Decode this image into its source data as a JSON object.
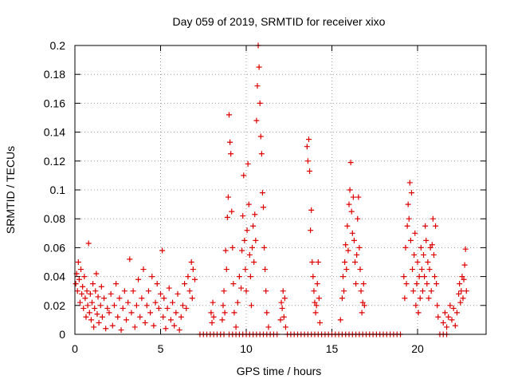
{
  "chart_data": {
    "type": "scatter",
    "title": "Day 059 of 2019, SRMTID for receiver xixo",
    "xlabel": "GPS time / hours",
    "ylabel": "SRMTID / TECUs",
    "xlim": [
      0,
      24
    ],
    "ylim": [
      0,
      0.2
    ],
    "x_ticks": [
      0,
      5,
      10,
      15,
      20
    ],
    "x_tick_labels": [
      "0",
      "5",
      "10",
      "15",
      "20"
    ],
    "y_ticks": [
      0,
      0.02,
      0.04,
      0.06,
      0.08,
      0.1,
      0.12,
      0.14,
      0.16,
      0.18,
      0.2
    ],
    "y_tick_labels": [
      "0",
      "0.02",
      "0.04",
      "0.06",
      "0.08",
      "0.1",
      "0.12",
      "0.14",
      "0.16",
      "0.18",
      "0.2"
    ],
    "grid": true,
    "marker": "+",
    "series_color": "#dd0000",
    "series": [
      {
        "name": "SRMTID",
        "points": [
          [
            0.05,
            0.035
          ],
          [
            0.1,
            0.042
          ],
          [
            0.15,
            0.03
          ],
          [
            0.2,
            0.05
          ],
          [
            0.25,
            0.038
          ],
          [
            0.3,
            0.022
          ],
          [
            0.35,
            0.045
          ],
          [
            0.4,
            0.028
          ],
          [
            0.45,
            0.033
          ],
          [
            0.5,
            0.018
          ],
          [
            0.55,
            0.04
          ],
          [
            0.6,
            0.025
          ],
          [
            0.65,
            0.012
          ],
          [
            0.7,
            0.03
          ],
          [
            0.75,
            0.02
          ],
          [
            0.8,
            0.063
          ],
          [
            0.85,
            0.015
          ],
          [
            0.9,
            0.028
          ],
          [
            0.95,
            0.01
          ],
          [
            1.0,
            0.022
          ],
          [
            1.05,
            0.035
          ],
          [
            1.1,
            0.005
          ],
          [
            1.15,
            0.018
          ],
          [
            1.2,
            0.03
          ],
          [
            1.25,
            0.042
          ],
          [
            1.3,
            0.014
          ],
          [
            1.35,
            0.026
          ],
          [
            1.4,
            0.008
          ],
          [
            1.5,
            0.02
          ],
          [
            1.55,
            0.033
          ],
          [
            1.6,
            0.012
          ],
          [
            1.7,
            0.025
          ],
          [
            1.8,
            0.004
          ],
          [
            1.9,
            0.018
          ],
          [
            2.0,
            0.015
          ],
          [
            2.1,
            0.028
          ],
          [
            2.2,
            0.006
          ],
          [
            2.3,
            0.02
          ],
          [
            2.4,
            0.035
          ],
          [
            2.5,
            0.012
          ],
          [
            2.6,
            0.025
          ],
          [
            2.7,
            0.003
          ],
          [
            2.8,
            0.018
          ],
          [
            2.9,
            0.03
          ],
          [
            3.0,
            0.01
          ],
          [
            3.1,
            0.022
          ],
          [
            3.2,
            0.052
          ],
          [
            3.3,
            0.015
          ],
          [
            3.4,
            0.03
          ],
          [
            3.5,
            0.005
          ],
          [
            3.6,
            0.02
          ],
          [
            3.7,
            0.038
          ],
          [
            3.8,
            0.012
          ],
          [
            3.9,
            0.025
          ],
          [
            4.0,
            0.045
          ],
          [
            4.1,
            0.008
          ],
          [
            4.2,
            0.02
          ],
          [
            4.3,
            0.03
          ],
          [
            4.4,
            0.015
          ],
          [
            4.5,
            0.04
          ],
          [
            4.6,
            0.006
          ],
          [
            4.7,
            0.022
          ],
          [
            4.8,
            0.035
          ],
          [
            4.9,
            0.018
          ],
          [
            5.0,
            0.028
          ],
          [
            5.1,
            0.058
          ],
          [
            5.15,
            0.012
          ],
          [
            5.2,
            0.025
          ],
          [
            5.3,
            0.004
          ],
          [
            5.4,
            0.018
          ],
          [
            5.5,
            0.032
          ],
          [
            5.6,
            0.01
          ],
          [
            5.7,
            0.022
          ],
          [
            5.8,
            0.006
          ],
          [
            5.9,
            0.015
          ],
          [
            6.0,
            0.028
          ],
          [
            6.1,
            0.003
          ],
          [
            6.2,
            0.012
          ],
          [
            6.3,
            0.02
          ],
          [
            6.4,
            0.035
          ],
          [
            6.5,
            0.018
          ],
          [
            6.6,
            0.04
          ],
          [
            6.7,
            0.03
          ],
          [
            6.8,
            0.05
          ],
          [
            6.85,
            0.025
          ],
          [
            6.9,
            0.045
          ],
          [
            7.0,
            0.038
          ],
          [
            7.3,
            0
          ],
          [
            7.5,
            0
          ],
          [
            7.7,
            0
          ],
          [
            7.9,
            0
          ],
          [
            8.1,
            0
          ],
          [
            8.3,
            0
          ],
          [
            8.5,
            0
          ],
          [
            8.7,
            0
          ],
          [
            7.95,
            0.015
          ],
          [
            8.0,
            0.008
          ],
          [
            8.05,
            0.022
          ],
          [
            8.1,
            0.012
          ],
          [
            8.6,
            0.01
          ],
          [
            8.65,
            0.02
          ],
          [
            8.7,
            0.03
          ],
          [
            8.75,
            0.015
          ],
          [
            8.8,
            0.058
          ],
          [
            8.85,
            0.045
          ],
          [
            8.9,
            0.081
          ],
          [
            8.95,
            0.095
          ],
          [
            9.0,
            0.152
          ],
          [
            9.05,
            0.133
          ],
          [
            9.1,
            0.125
          ],
          [
            9.15,
            0.085
          ],
          [
            9.2,
            0.06
          ],
          [
            9.25,
            0.035
          ],
          [
            9.3,
            0.015
          ],
          [
            9.4,
            0.005
          ],
          [
            9.5,
            0.022
          ],
          [
            9.6,
            0.04
          ],
          [
            9.7,
            0.032
          ],
          [
            9.75,
            0.058
          ],
          [
            9.8,
            0.082
          ],
          [
            9.85,
            0.11
          ],
          [
            9.9,
            0.065
          ],
          [
            9.95,
            0.045
          ],
          [
            10.0,
            0.03
          ],
          [
            10.05,
            0.072
          ],
          [
            10.1,
            0.118
          ],
          [
            10.15,
            0.09
          ],
          [
            10.2,
            0.055
          ],
          [
            10.25,
            0.04
          ],
          [
            10.3,
            0.02
          ],
          [
            10.35,
            0.06
          ],
          [
            10.4,
            0.075
          ],
          [
            10.45,
            0.05
          ],
          [
            10.5,
            0.083
          ],
          [
            10.55,
            0.065
          ],
          [
            10.6,
            0.148
          ],
          [
            10.65,
            0.172
          ],
          [
            10.7,
            0.2
          ],
          [
            10.75,
            0.185
          ],
          [
            10.8,
            0.16
          ],
          [
            10.85,
            0.137
          ],
          [
            10.9,
            0.125
          ],
          [
            10.95,
            0.098
          ],
          [
            11.0,
            0.088
          ],
          [
            11.05,
            0.06
          ],
          [
            11.1,
            0.045
          ],
          [
            11.15,
            0.03
          ],
          [
            11.2,
            0.015
          ],
          [
            11.3,
            0.005
          ],
          [
            9.0,
            0
          ],
          [
            9.2,
            0
          ],
          [
            9.4,
            0
          ],
          [
            9.6,
            0
          ],
          [
            9.8,
            0
          ],
          [
            10.0,
            0
          ],
          [
            10.2,
            0
          ],
          [
            10.4,
            0
          ],
          [
            10.6,
            0
          ],
          [
            10.8,
            0
          ],
          [
            11.0,
            0
          ],
          [
            11.2,
            0
          ],
          [
            11.4,
            0
          ],
          [
            11.6,
            0
          ],
          [
            11.8,
            0
          ],
          [
            12.0,
            0.01
          ],
          [
            12.05,
            0.022
          ],
          [
            12.1,
            0.018
          ],
          [
            12.15,
            0.03
          ],
          [
            12.2,
            0.012
          ],
          [
            12.25,
            0.025
          ],
          [
            12.3,
            0.005
          ],
          [
            12.4,
            0
          ],
          [
            12.6,
            0
          ],
          [
            12.8,
            0
          ],
          [
            13.0,
            0
          ],
          [
            13.2,
            0
          ],
          [
            13.4,
            0
          ],
          [
            13.6,
            0
          ],
          [
            13.8,
            0
          ],
          [
            14.0,
            0
          ],
          [
            14.2,
            0
          ],
          [
            14.4,
            0
          ],
          [
            14.6,
            0
          ],
          [
            14.8,
            0
          ],
          [
            15.0,
            0
          ],
          [
            15.2,
            0
          ],
          [
            15.4,
            0
          ],
          [
            15.6,
            0
          ],
          [
            15.8,
            0
          ],
          [
            16.0,
            0
          ],
          [
            16.2,
            0
          ],
          [
            16.4,
            0
          ],
          [
            16.6,
            0
          ],
          [
            16.8,
            0
          ],
          [
            17.0,
            0
          ],
          [
            17.2,
            0
          ],
          [
            17.4,
            0
          ],
          [
            17.6,
            0
          ],
          [
            17.8,
            0
          ],
          [
            18.0,
            0
          ],
          [
            18.2,
            0
          ],
          [
            18.4,
            0
          ],
          [
            18.6,
            0
          ],
          [
            18.8,
            0
          ],
          [
            19.0,
            0
          ],
          [
            13.55,
            0.13
          ],
          [
            13.6,
            0.12
          ],
          [
            13.65,
            0.135
          ],
          [
            13.7,
            0.113
          ],
          [
            13.75,
            0.072
          ],
          [
            13.8,
            0.086
          ],
          [
            13.85,
            0.05
          ],
          [
            13.9,
            0.04
          ],
          [
            13.95,
            0.03
          ],
          [
            14.0,
            0.022
          ],
          [
            14.05,
            0.015
          ],
          [
            14.1,
            0.02
          ],
          [
            14.15,
            0.035
          ],
          [
            14.2,
            0.05
          ],
          [
            14.25,
            0.025
          ],
          [
            14.3,
            0.008
          ],
          [
            15.5,
            0.01
          ],
          [
            15.6,
            0.025
          ],
          [
            15.65,
            0.04
          ],
          [
            15.7,
            0.03
          ],
          [
            15.75,
            0.05
          ],
          [
            15.8,
            0.062
          ],
          [
            15.85,
            0.045
          ],
          [
            15.9,
            0.075
          ],
          [
            15.95,
            0.058
          ],
          [
            16.0,
            0.09
          ],
          [
            16.05,
            0.1
          ],
          [
            16.1,
            0.119
          ],
          [
            16.15,
            0.085
          ],
          [
            16.2,
            0.07
          ],
          [
            16.25,
            0.095
          ],
          [
            16.3,
            0.065
          ],
          [
            16.35,
            0.05
          ],
          [
            16.4,
            0.035
          ],
          [
            16.45,
            0.055
          ],
          [
            16.5,
            0.08
          ],
          [
            16.55,
            0.095
          ],
          [
            16.6,
            0.06
          ],
          [
            16.65,
            0.045
          ],
          [
            16.7,
            0.03
          ],
          [
            16.75,
            0.015
          ],
          [
            16.8,
            0.022
          ],
          [
            16.85,
            0.035
          ],
          [
            16.9,
            0.02
          ],
          [
            19.2,
            0.04
          ],
          [
            19.25,
            0.025
          ],
          [
            19.3,
            0.06
          ],
          [
            19.35,
            0.035
          ],
          [
            19.4,
            0.075
          ],
          [
            19.45,
            0.09
          ],
          [
            19.5,
            0.08
          ],
          [
            19.55,
            0.105
          ],
          [
            19.6,
            0.065
          ],
          [
            19.65,
            0.098
          ],
          [
            19.7,
            0.045
          ],
          [
            19.75,
            0.03
          ],
          [
            19.8,
            0.055
          ],
          [
            19.85,
            0.07
          ],
          [
            19.9,
            0.02
          ],
          [
            19.95,
            0.035
          ],
          [
            20.0,
            0.05
          ],
          [
            20.05,
            0.015
          ],
          [
            20.1,
            0.04
          ],
          [
            20.15,
            0.025
          ],
          [
            20.2,
            0.06
          ],
          [
            20.25,
            0.045
          ],
          [
            20.3,
            0.03
          ],
          [
            20.35,
            0.055
          ],
          [
            20.4,
            0.04
          ],
          [
            20.45,
            0.075
          ],
          [
            20.5,
            0.065
          ],
          [
            20.55,
            0.035
          ],
          [
            20.6,
            0.05
          ],
          [
            20.65,
            0.025
          ],
          [
            20.7,
            0.045
          ],
          [
            20.75,
            0.06
          ],
          [
            20.8,
            0.03
          ],
          [
            20.85,
            0.062
          ],
          [
            20.9,
            0.08
          ],
          [
            20.95,
            0.055
          ],
          [
            21.0,
            0.04
          ],
          [
            21.05,
            0.075
          ],
          [
            21.1,
            0.035
          ],
          [
            21.15,
            0.02
          ],
          [
            21.2,
            0.012
          ],
          [
            21.3,
            0
          ],
          [
            21.5,
            0
          ],
          [
            21.7,
            0
          ],
          [
            21.5,
            0.008
          ],
          [
            21.6,
            0.015
          ],
          [
            21.7,
            0.005
          ],
          [
            21.8,
            0.012
          ],
          [
            21.9,
            0.02
          ],
          [
            22.0,
            0.01
          ],
          [
            22.1,
            0.018
          ],
          [
            22.2,
            0.006
          ],
          [
            22.3,
            0.015
          ],
          [
            22.4,
            0.028
          ],
          [
            22.45,
            0.035
          ],
          [
            22.5,
            0.022
          ],
          [
            22.55,
            0.03
          ],
          [
            22.6,
            0.04
          ],
          [
            22.65,
            0.025
          ],
          [
            22.7,
            0.038
          ],
          [
            22.75,
            0.048
          ],
          [
            22.8,
            0.059
          ],
          [
            22.85,
            0.03
          ]
        ]
      }
    ]
  }
}
